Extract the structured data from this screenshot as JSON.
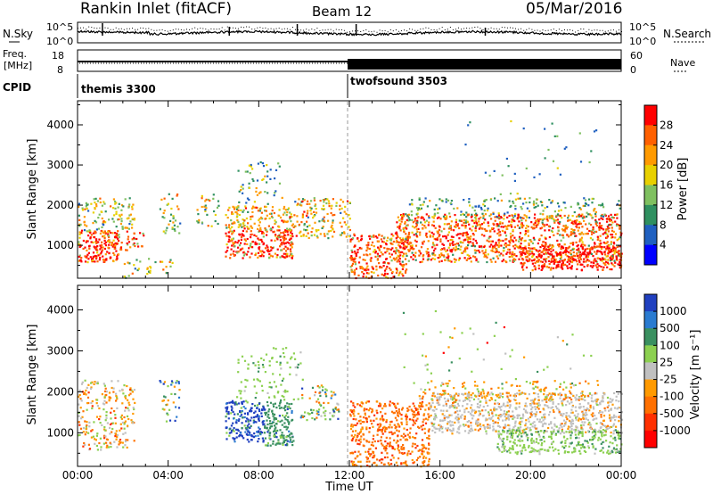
{
  "header": {
    "title": "Rankin Inlet (fitACF)",
    "beam": "Beam 12",
    "date": "05/Mar/2016"
  },
  "noise_panel": {
    "left_label": "N.Sky",
    "right_label": "N.Search",
    "left_ticks": [
      "10^5",
      "10^0"
    ],
    "right_ticks": [
      "10^5",
      "10^0"
    ]
  },
  "freq_panel": {
    "left_label_line1": "Freq.",
    "left_label_line2": "[MHz]",
    "left_ticks": [
      "18",
      "8"
    ],
    "right_label": "Nave",
    "right_ticks": [
      "60",
      "0"
    ]
  },
  "cpid_panel": {
    "label": "CPID",
    "modes": [
      {
        "name": "themis 3300",
        "start_hour": 0
      },
      {
        "name": "twofsound 3503",
        "start_hour": 12
      }
    ]
  },
  "chart_data": [
    {
      "type": "heatmap",
      "name": "power",
      "ylabel": "Slant Range [km]",
      "ylim": [
        180,
        4600
      ],
      "yticks": [
        "4000",
        "3000",
        "2000",
        "1000"
      ],
      "xlim": [
        0,
        24
      ],
      "colorbar": {
        "label": "Power [dB]",
        "ticks": [
          "28",
          "24",
          "20",
          "16",
          "12",
          "8",
          "4"
        ],
        "colors": [
          "#ff0000",
          "#ff6000",
          "#ff9a00",
          "#e8d000",
          "#7fc060",
          "#2f9060",
          "#2060c0",
          "#0000ff"
        ]
      }
    },
    {
      "type": "heatmap",
      "name": "velocity",
      "ylabel": "Slant Range [km]",
      "ylim": [
        180,
        4600
      ],
      "yticks": [
        "4000",
        "3000",
        "2000",
        "1000"
      ],
      "xlim": [
        0,
        24
      ],
      "colorbar": {
        "label": "Velocity [m s⁻¹]",
        "ticks": [
          "1000",
          "500",
          "100",
          "25",
          "-25",
          "-100",
          "-500",
          "-1000"
        ],
        "colors": [
          "#2040c0",
          "#2a7bd0",
          "#3a9060",
          "#8cd050",
          "#c0c0c0",
          "#ff9a00",
          "#ff7000",
          "#ff3000",
          "#ff0000"
        ]
      }
    }
  ],
  "x_axis": {
    "label": "Time UT",
    "ticks": [
      "00:00",
      "04:00",
      "08:00",
      "12:00",
      "16:00",
      "20:00",
      "00:00"
    ]
  }
}
